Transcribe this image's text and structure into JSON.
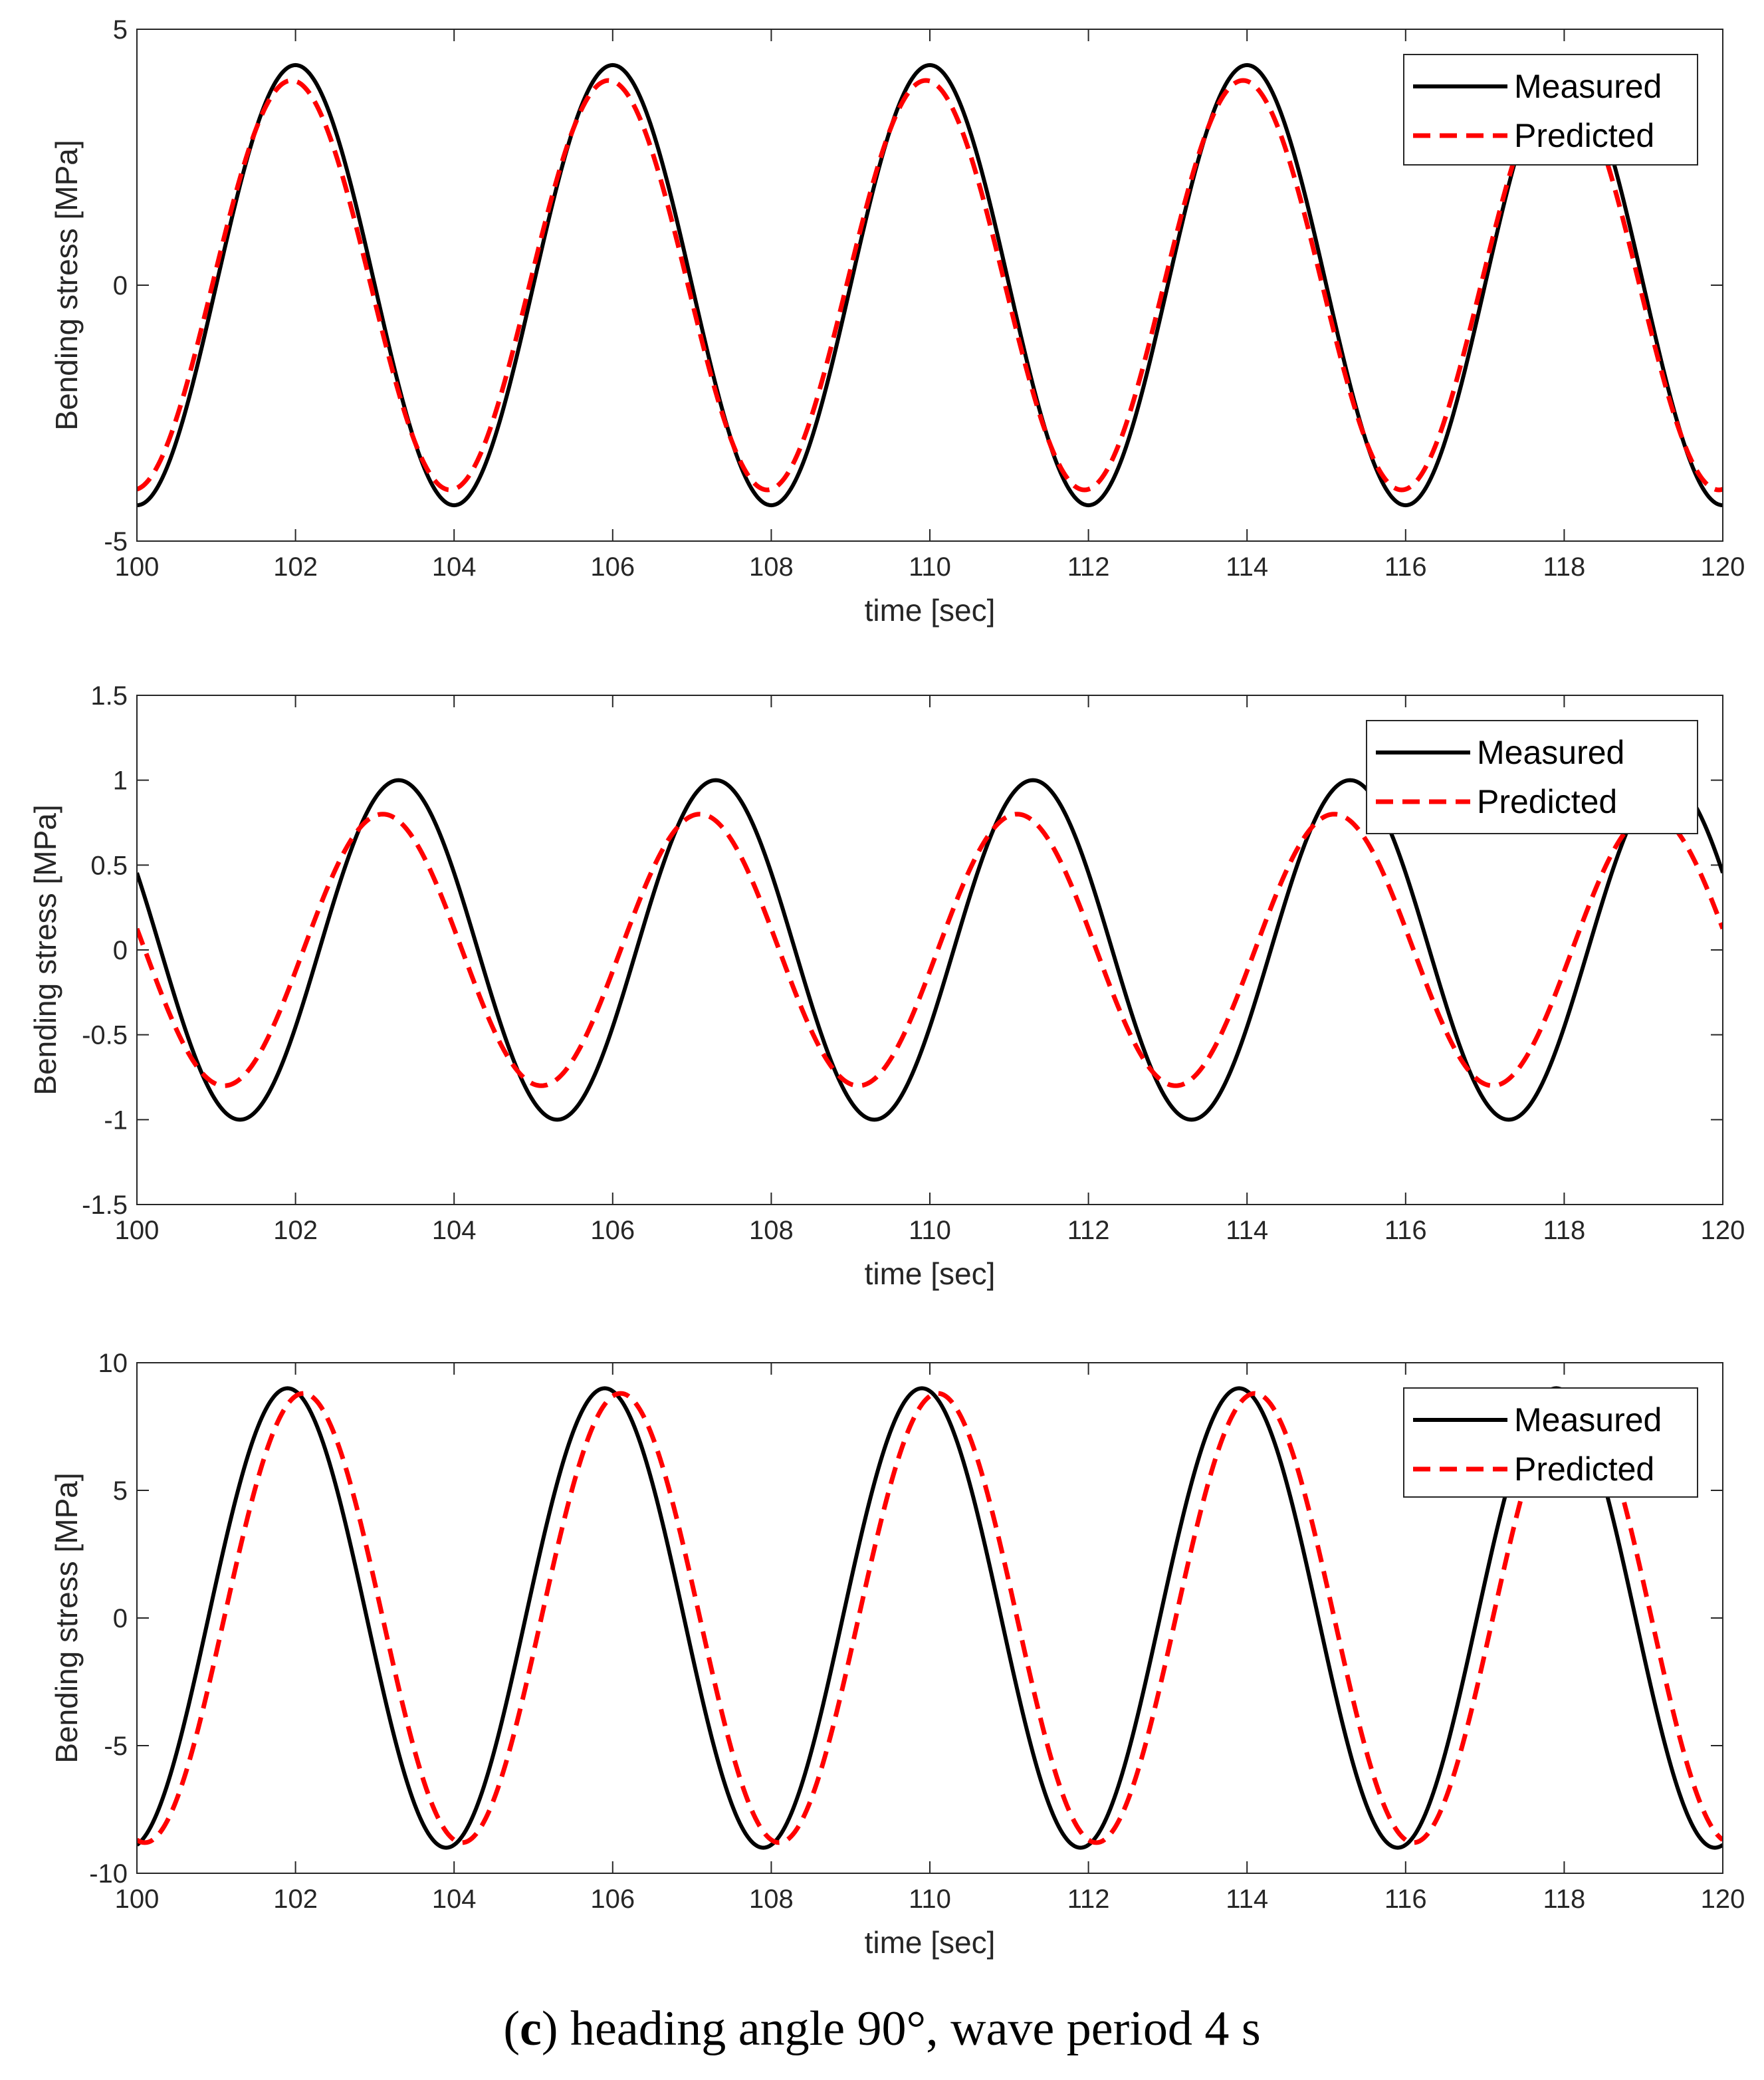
{
  "caption": {
    "open": "(",
    "letter": "c",
    "close": ")",
    "text": " heading angle 90°, wave period 4 s"
  },
  "chart_data": [
    {
      "type": "line",
      "xlabel": "time [sec]",
      "ylabel": "Bending stress [MPa]",
      "xlim": [
        100,
        120
      ],
      "ylim": [
        -5,
        5
      ],
      "xticks": [
        100,
        102,
        104,
        106,
        108,
        110,
        112,
        114,
        116,
        118,
        120
      ],
      "yticks": [
        -5,
        0,
        5
      ],
      "ytick_labels": [
        "-5",
        "0",
        "5"
      ],
      "legend": {
        "location": "top-right",
        "entries": [
          "Measured",
          "Predicted"
        ]
      },
      "series": [
        {
          "name": "Measured",
          "style": "solid",
          "color": "#000000",
          "period": 4,
          "amplitude": 4.3,
          "peak_time": 102.0
        },
        {
          "name": "Predicted",
          "style": "dashed",
          "color": "#ff0000",
          "period": 4,
          "amplitude": 4.0,
          "peak_time": 101.95
        }
      ]
    },
    {
      "type": "line",
      "xlabel": "time [sec]",
      "ylabel": "Bending stress [MPa]",
      "xlim": [
        100,
        120
      ],
      "ylim": [
        -1.5,
        1.5
      ],
      "xticks": [
        100,
        102,
        104,
        106,
        108,
        110,
        112,
        114,
        116,
        118,
        120
      ],
      "yticks": [
        -1.5,
        -1,
        -0.5,
        0,
        0.5,
        1,
        1.5
      ],
      "ytick_labels": [
        "-1.5",
        "-1",
        "-0.5",
        "0",
        "0.5",
        "1",
        "1.5"
      ],
      "legend": {
        "location": "top-right",
        "entries": [
          "Measured",
          "Predicted"
        ]
      },
      "series": [
        {
          "name": "Measured",
          "style": "solid",
          "color": "#000000",
          "period": 4,
          "amplitude": 1.0,
          "peak_time": 103.3
        },
        {
          "name": "Predicted",
          "style": "dashed",
          "color": "#ff0000",
          "period": 4,
          "amplitude": 0.8,
          "peak_time": 103.1
        }
      ]
    },
    {
      "type": "line",
      "xlabel": "time [sec]",
      "ylabel": "Bending stress [MPa]",
      "xlim": [
        100,
        120
      ],
      "ylim": [
        -10,
        10
      ],
      "xticks": [
        100,
        102,
        104,
        106,
        108,
        110,
        112,
        114,
        116,
        118,
        120
      ],
      "yticks": [
        -10,
        -5,
        0,
        5,
        10
      ],
      "ytick_labels": [
        "-10",
        "-5",
        "0",
        "5",
        "10"
      ],
      "legend": {
        "location": "top-right",
        "entries": [
          "Measured",
          "Predicted"
        ]
      },
      "series": [
        {
          "name": "Measured",
          "style": "solid",
          "color": "#000000",
          "period": 4,
          "amplitude": 9.0,
          "peak_time": 101.9
        },
        {
          "name": "Predicted",
          "style": "dashed",
          "color": "#ff0000",
          "period": 4,
          "amplitude": 8.8,
          "peak_time": 102.1
        }
      ]
    }
  ]
}
